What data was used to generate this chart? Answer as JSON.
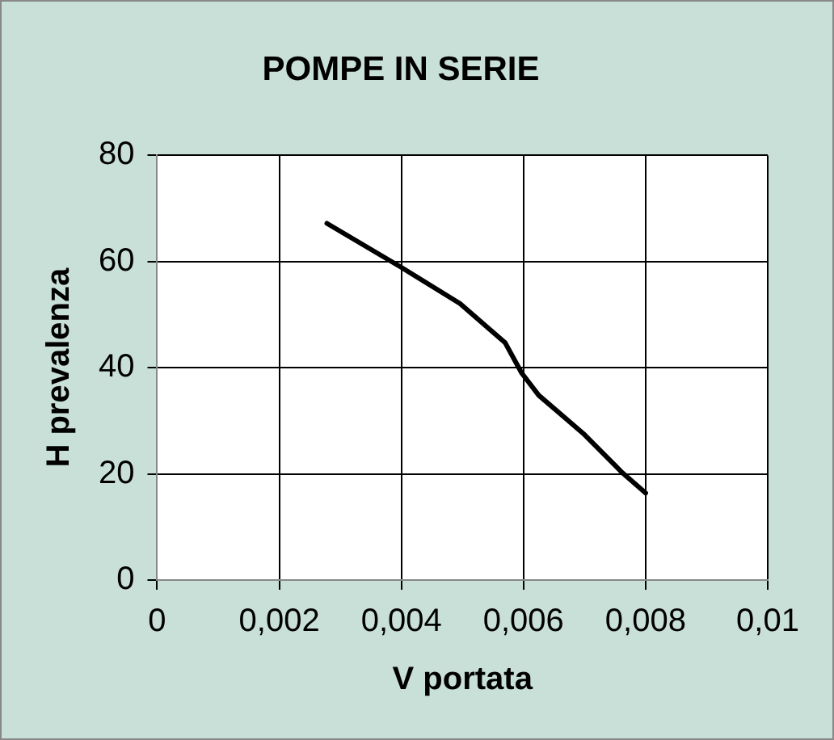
{
  "chart_data": {
    "type": "line",
    "title": "POMPE IN SERIE",
    "xlabel": "V portata",
    "ylabel": "H prevalenza",
    "x": [
      0.00278,
      0.004,
      0.00496,
      0.00547,
      0.0057,
      0.00597,
      0.00625,
      0.00698,
      0.00762,
      0.008
    ],
    "series": [
      {
        "color": "#000000",
        "values": [
          67.2,
          58.9,
          52.1,
          47,
          44.7,
          39,
          34.8,
          27.6,
          20.2,
          16.4
        ]
      }
    ],
    "xlim": [
      0,
      0.01
    ],
    "xticks": [
      0,
      {
        "value": 0.002,
        "label": "0,002"
      },
      {
        "value": 0.004,
        "label": "0,004"
      },
      {
        "value": 0.006,
        "label": "0,006"
      },
      {
        "value": 0.008,
        "label": "0,008"
      },
      {
        "value": 0.01,
        "label": "0,01"
      }
    ],
    "ylim": [
      0,
      80
    ],
    "yticks": [
      0,
      20,
      40,
      60,
      80
    ],
    "grid": true,
    "legend": false,
    "marker": "none",
    "line_style": "solid"
  }
}
